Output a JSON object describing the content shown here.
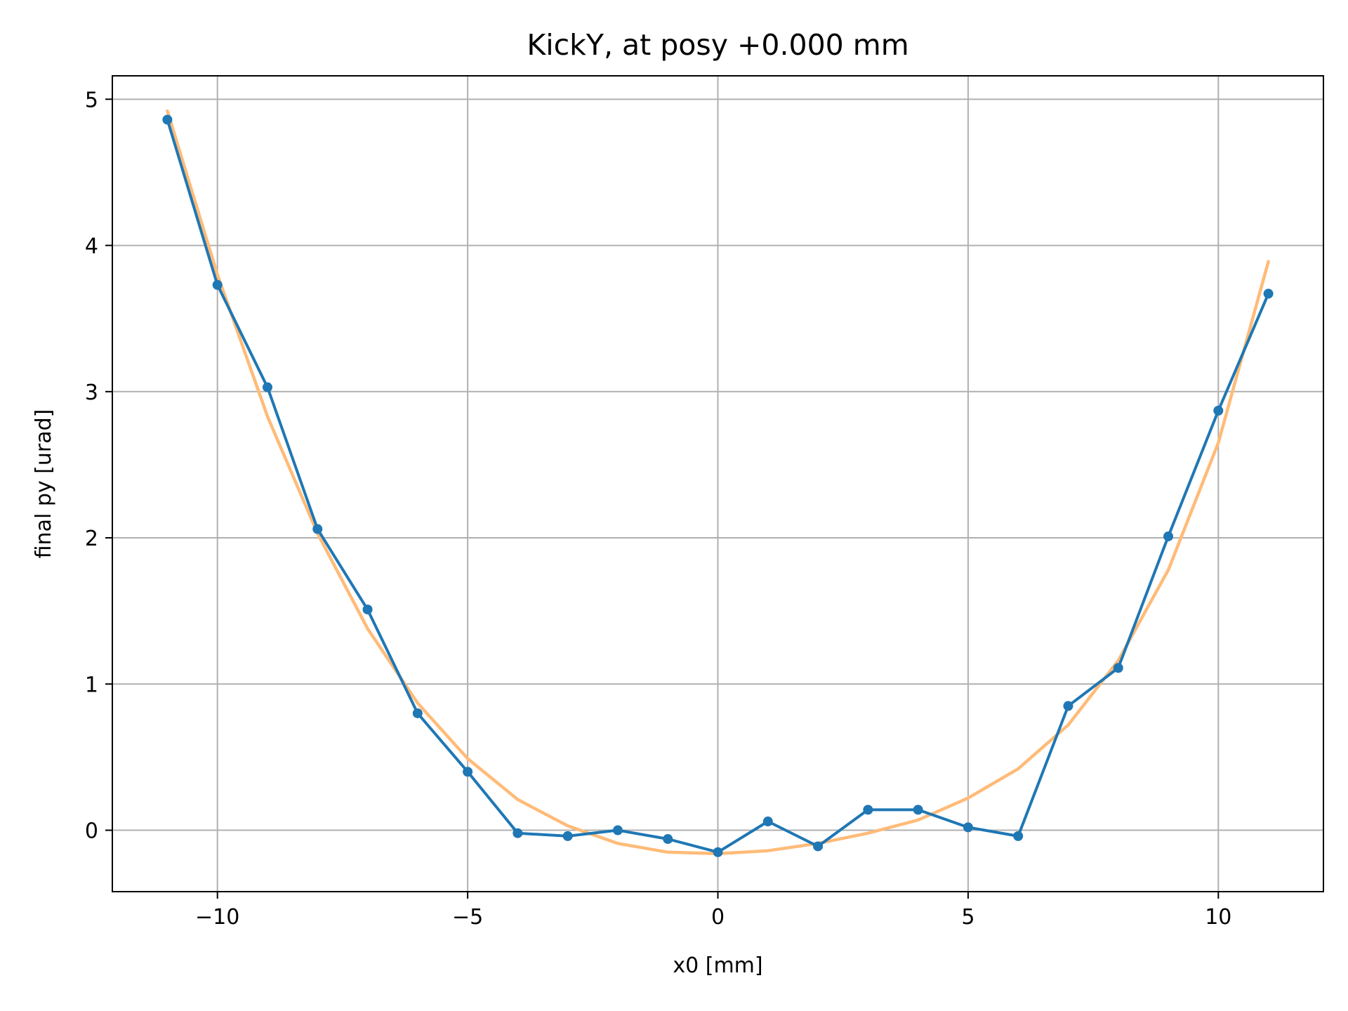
{
  "chart_data": {
    "type": "line",
    "title": "KickY, at posy +0.000 mm",
    "xlabel": "x0 [mm]",
    "ylabel": "final py [urad]",
    "xlim": [
      -12.1,
      12.1
    ],
    "ylim": [
      -0.42,
      5.16
    ],
    "xticks": [
      -10,
      -5,
      0,
      5,
      10
    ],
    "yticks": [
      0,
      1,
      2,
      3,
      4,
      5
    ],
    "xtick_labels": [
      "−10",
      "−5",
      "0",
      "5",
      "10"
    ],
    "ytick_labels": [
      "0",
      "1",
      "2",
      "3",
      "4",
      "5"
    ],
    "grid": true,
    "series": [
      {
        "color": "#1f77b4",
        "style": "line-with-markers",
        "x": [
          -11,
          -10,
          -9,
          -8,
          -7,
          -6,
          -5,
          -4,
          -3,
          -2,
          -1,
          0,
          1,
          2,
          3,
          4,
          5,
          6,
          7,
          8,
          9,
          10,
          11
        ],
        "y": [
          4.86,
          3.73,
          3.03,
          2.06,
          1.51,
          0.8,
          0.4,
          -0.02,
          -0.04,
          0.0,
          -0.06,
          -0.15,
          0.06,
          -0.11,
          0.14,
          0.14,
          0.02,
          -0.04,
          0.85,
          1.11,
          2.01,
          2.87,
          3.67
        ]
      },
      {
        "color": "#ffbb78",
        "style": "line",
        "x": [
          -11,
          -10,
          -9,
          -8,
          -7,
          -6,
          -5,
          -4,
          -3,
          -2,
          -1,
          0,
          1,
          2,
          3,
          4,
          5,
          6,
          7,
          8,
          9,
          10,
          11
        ],
        "y": [
          4.92,
          3.8,
          2.83,
          2.03,
          1.38,
          0.87,
          0.49,
          0.21,
          0.03,
          -0.09,
          -0.15,
          -0.16,
          -0.14,
          -0.09,
          -0.02,
          0.07,
          0.22,
          0.42,
          0.72,
          1.16,
          1.78,
          2.65,
          3.89
        ]
      }
    ]
  }
}
